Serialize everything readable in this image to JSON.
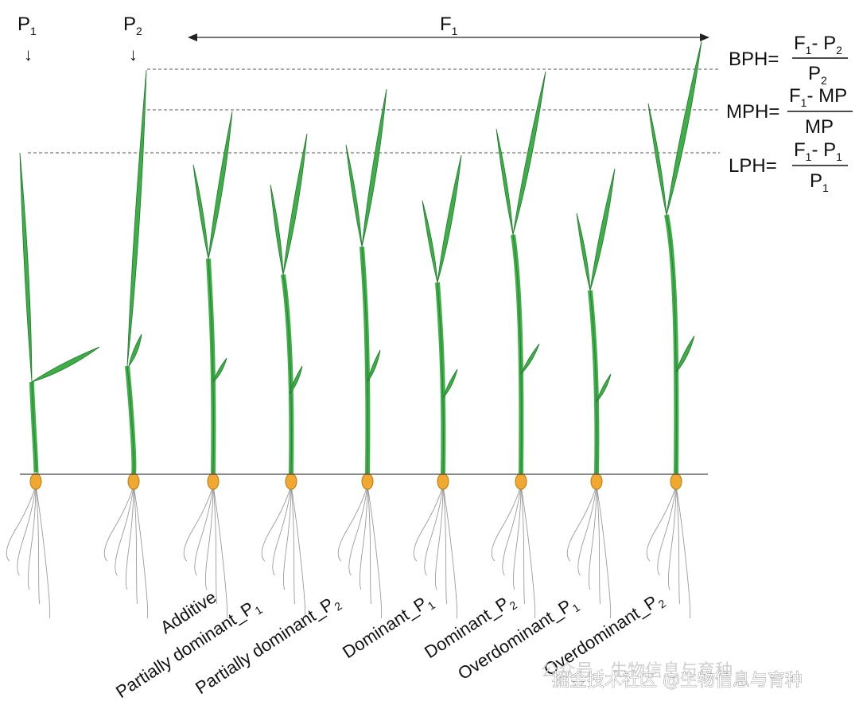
{
  "parents": [
    {
      "name": "P",
      "sub": "1"
    },
    {
      "name": "P",
      "sub": "2"
    }
  ],
  "arrow_glyph": "↓",
  "f1_label": {
    "name": "F",
    "sub": "1"
  },
  "formulas": [
    {
      "lhs": "BPH=",
      "num_a": "F",
      "num_a_sub": "1",
      "num_op": "- P",
      "num_b_sub": "2",
      "den": "P",
      "den_sub": "2"
    },
    {
      "lhs": "MPH=",
      "num_a": "F",
      "num_a_sub": "1",
      "num_op": "- MP",
      "num_b_sub": "",
      "den": "MP",
      "den_sub": ""
    },
    {
      "lhs": "LPH=",
      "num_a": "F",
      "num_a_sub": "1",
      "num_op": "- P",
      "num_b_sub": "1",
      "den": "P",
      "den_sub": "1"
    }
  ],
  "categories": [
    {
      "label": "Additive",
      "sub": ""
    },
    {
      "label": "Partially dominant_P",
      "sub": "1"
    },
    {
      "label": "Partially dominant_P",
      "sub": "2"
    },
    {
      "label": "Dominant_P",
      "sub": "1"
    },
    {
      "label": "Dominant_P",
      "sub": "2"
    },
    {
      "label": "Overdominant_P",
      "sub": "1"
    },
    {
      "label": "Overdominant_P",
      "sub": "2"
    }
  ],
  "watermark": {
    "line1": "公众号 · 生物信息与育种",
    "line2": "掘金技术社区 @生物信息与育种"
  },
  "colors": {
    "leaf": "#3fae49",
    "leaf_dark": "#1f7a2c",
    "seed": "#f0a830",
    "root": "#9a9a9a",
    "ground": "#444444",
    "dash": "#555555"
  }
}
